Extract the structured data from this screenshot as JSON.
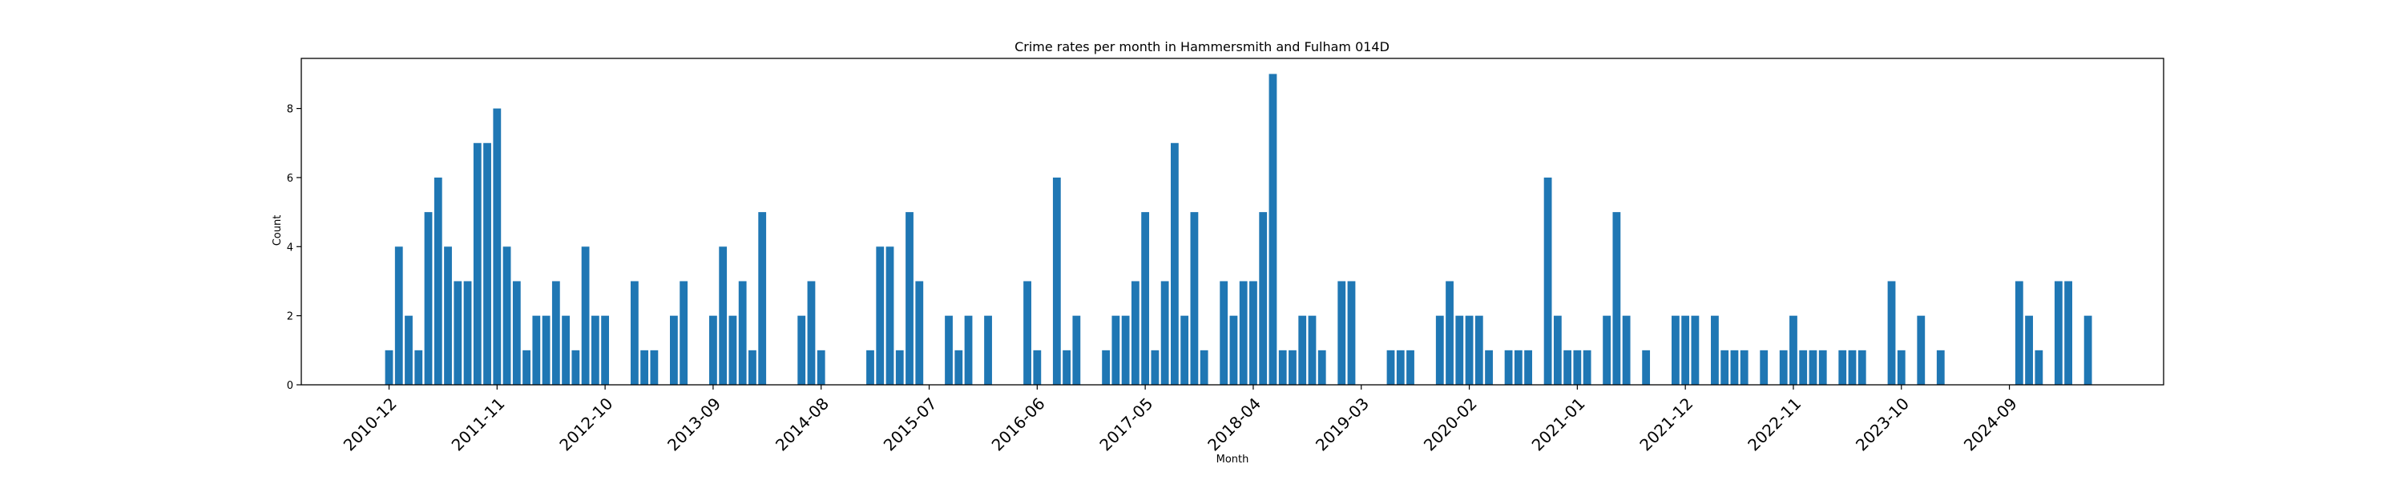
{
  "chart_data": {
    "type": "bar",
    "title": "Crime rates per month in Hammersmith and Fulham 014D",
    "xlabel": "Month",
    "ylabel": "Count",
    "ylim": [
      0,
      9.45
    ],
    "yticks": [
      0,
      2,
      4,
      6,
      8
    ],
    "x_tick_labels": [
      "2010-12",
      "2011-11",
      "2012-10",
      "2013-09",
      "2014-08",
      "2015-07",
      "2016-06",
      "2017-05",
      "2018-04",
      "2019-03",
      "2020-02",
      "2021-01",
      "2021-12",
      "2022-11",
      "2023-10",
      "2024-09"
    ],
    "bar_color": "#1f77b4",
    "grid": false,
    "series": [
      {
        "values": [
          1,
          4,
          2,
          1,
          5,
          6,
          4,
          3,
          3,
          7,
          7,
          8,
          4,
          3,
          1,
          2,
          2,
          3,
          2,
          1,
          4,
          2,
          2,
          0,
          0,
          3,
          1,
          1,
          0,
          2,
          3,
          0,
          0,
          2,
          4,
          2,
          3,
          1,
          5,
          0,
          0,
          0,
          2,
          3,
          1,
          0,
          0,
          0,
          0,
          1,
          4,
          4,
          1,
          5,
          3,
          0,
          0,
          2,
          1,
          2,
          0,
          2,
          0,
          0,
          0,
          3,
          1,
          0,
          6,
          1,
          2,
          0,
          0,
          1,
          2,
          2,
          3,
          5,
          1,
          3,
          7,
          2,
          5,
          1,
          0,
          3,
          2,
          3,
          3,
          5,
          9,
          1,
          1,
          2,
          2,
          1,
          0,
          3,
          3,
          0,
          0,
          0,
          1,
          1,
          1,
          0,
          0,
          2,
          3,
          2,
          2,
          2,
          1,
          0,
          1,
          1,
          1,
          0,
          6,
          2,
          1,
          1,
          1,
          0,
          2,
          5,
          2,
          0,
          1,
          0,
          0,
          2,
          2,
          2,
          0,
          2,
          1,
          1,
          1,
          0,
          1,
          0,
          1,
          2,
          1,
          1,
          1,
          0,
          1,
          1,
          1,
          0,
          0,
          3,
          1,
          0,
          2,
          0,
          1,
          0,
          0,
          0,
          0,
          0,
          0,
          0,
          3,
          2,
          1,
          0,
          3,
          3,
          0,
          2
        ]
      }
    ]
  }
}
